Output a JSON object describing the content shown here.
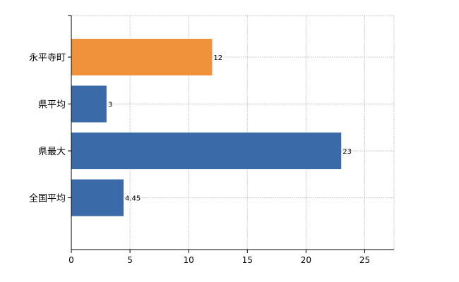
{
  "chart_data": {
    "type": "bar",
    "orientation": "horizontal",
    "categories": [
      "永平寺町",
      "県平均",
      "県最大",
      "全国平均"
    ],
    "values": [
      12,
      3,
      23,
      4.45
    ],
    "data_labels": [
      "12",
      "3",
      "23",
      "4.45"
    ],
    "colors": [
      "#f0923b",
      "#3a6aa8",
      "#3a6aa8",
      "#3a6aa8"
    ],
    "xlim": [
      0,
      27.5
    ],
    "xticks": [
      0,
      5,
      10,
      15,
      20,
      25
    ],
    "grid": true
  }
}
